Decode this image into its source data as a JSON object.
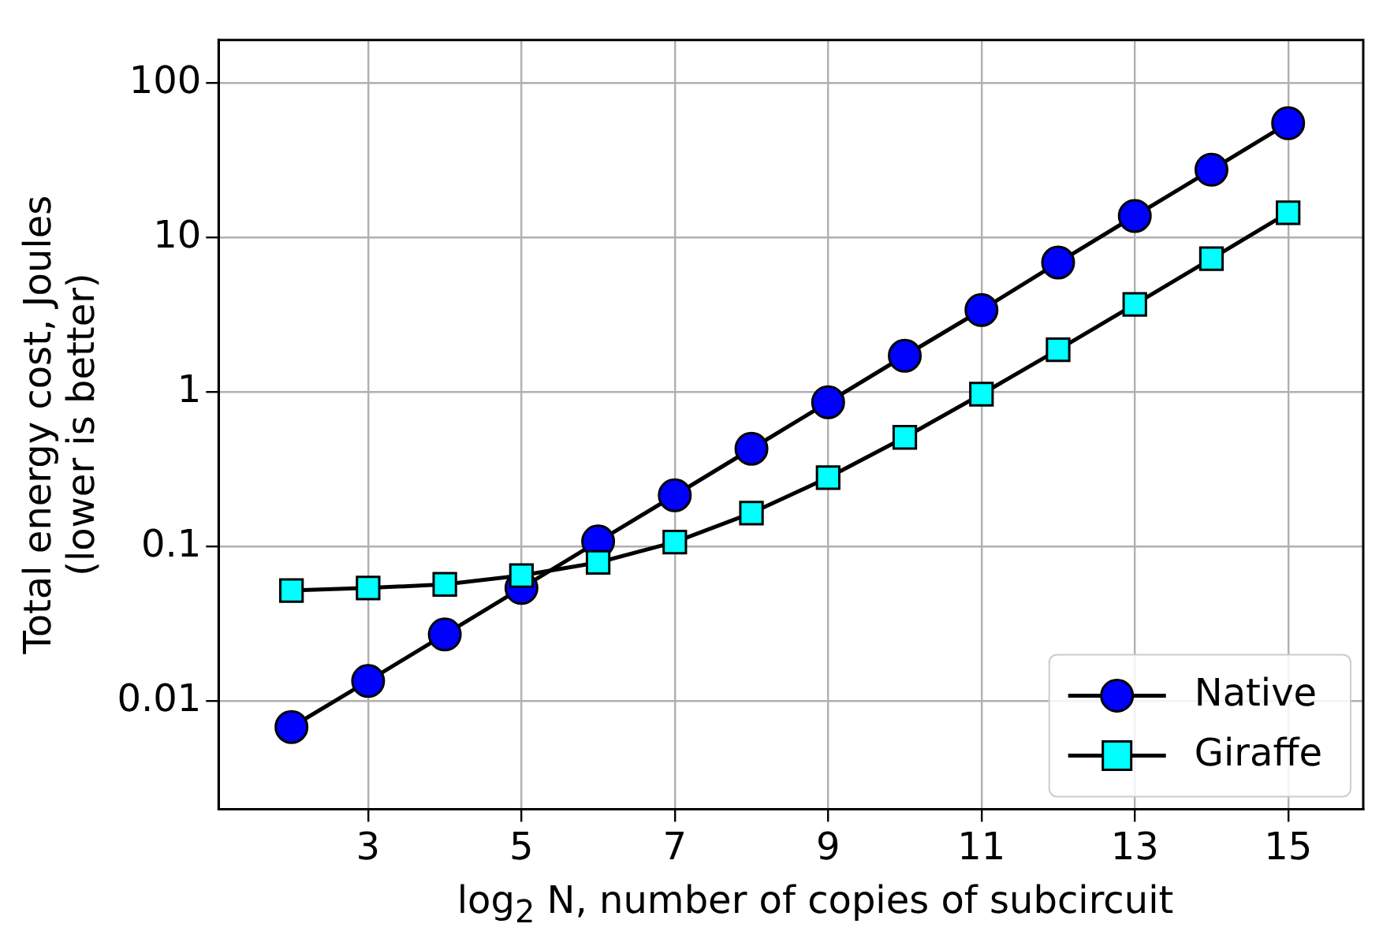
{
  "chart_data": {
    "type": "line",
    "xlabel": "log$_{2}$ N, number of copies of subcircuit",
    "ylabel": "Total energy cost, Joules\n(lower is better)",
    "x": [
      2,
      3,
      4,
      5,
      6,
      7,
      8,
      9,
      10,
      11,
      12,
      13,
      14,
      15
    ],
    "series": [
      {
        "name": "Native",
        "color": "#0000ff",
        "marker": "circle",
        "values": [
          0.0068,
          0.0135,
          0.027,
          0.054,
          0.108,
          0.215,
          0.43,
          0.86,
          1.72,
          3.4,
          6.9,
          13.8,
          27.5,
          55
        ]
      },
      {
        "name": "Giraffe",
        "color": "#00ffff",
        "marker": "square",
        "values": [
          0.052,
          0.054,
          0.057,
          0.065,
          0.079,
          0.107,
          0.165,
          0.28,
          0.51,
          0.97,
          1.88,
          3.7,
          7.3,
          14.5
        ]
      }
    ],
    "log": "y",
    "xlim": [
      1.05,
      15.98
    ],
    "ylim": [
      0.002,
      190
    ],
    "xticks": [
      3,
      5,
      7,
      9,
      11,
      13,
      15
    ],
    "yticks": [
      0.01,
      0.1,
      1,
      10,
      100
    ],
    "grid": true,
    "legend": "bottom right",
    "line_style": "solid"
  }
}
